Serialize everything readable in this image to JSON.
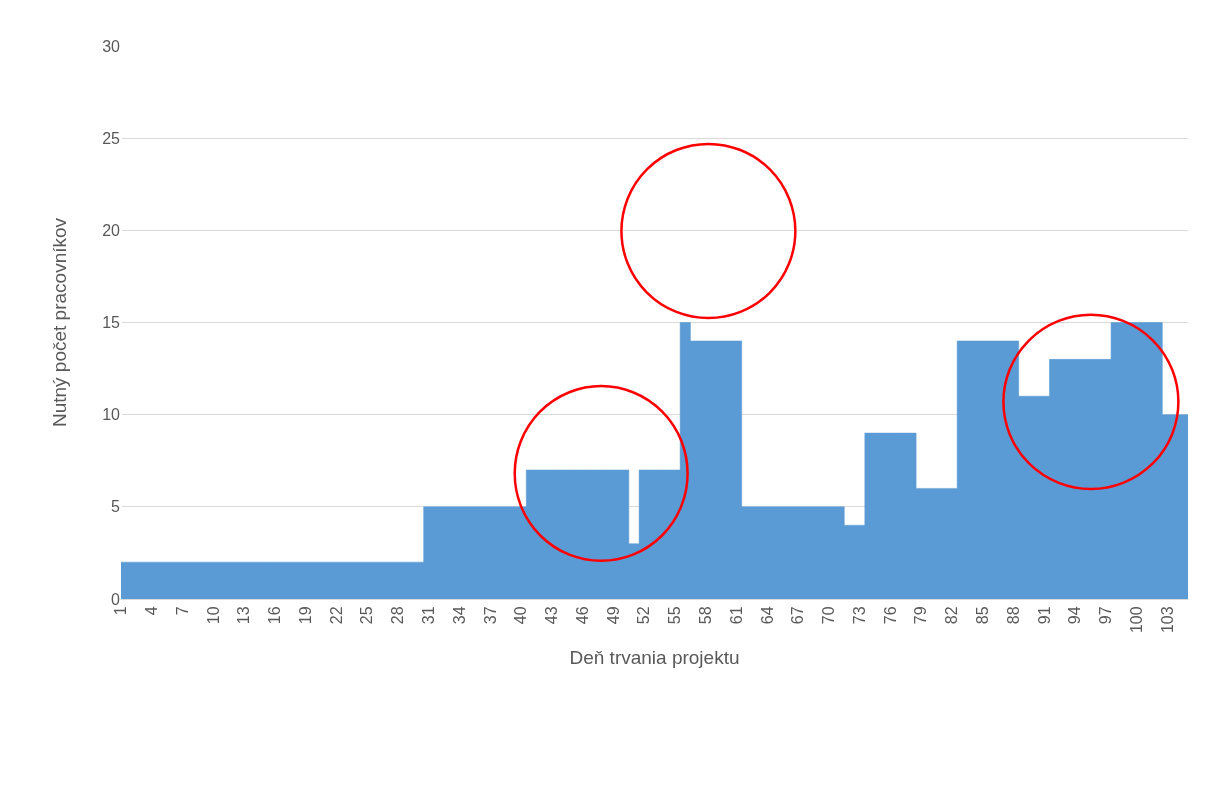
{
  "chart_data": {
    "type": "area",
    "xlabel": "Deň trvania projektu",
    "ylabel": "Nutný počet pracovníkov",
    "categories": [
      "1",
      null,
      null,
      "4",
      null,
      null,
      "7",
      null,
      null,
      "10",
      null,
      null,
      "13",
      null,
      null,
      "16",
      null,
      null,
      "19",
      null,
      null,
      "22",
      null,
      null,
      "25",
      null,
      null,
      "28",
      null,
      null,
      "31",
      null,
      null,
      "34",
      null,
      null,
      "37",
      null,
      null,
      "40",
      null,
      null,
      "43",
      null,
      null,
      "46",
      null,
      null,
      "49",
      null,
      null,
      "52",
      null,
      null,
      "55",
      null,
      null,
      "58",
      null,
      null,
      "61",
      null,
      null,
      "64",
      null,
      null,
      "67",
      null,
      null,
      "70",
      null,
      null,
      "73",
      null,
      null,
      "76",
      null,
      null,
      "79",
      null,
      null,
      "82",
      null,
      null,
      "85",
      null,
      null,
      "88",
      null,
      null,
      "91",
      null,
      null,
      "94",
      null,
      null,
      "97",
      null,
      null,
      "100",
      null,
      null,
      "103",
      null,
      null
    ],
    "values": [
      2,
      2,
      2,
      2,
      2,
      2,
      2,
      2,
      2,
      2,
      2,
      2,
      2,
      2,
      2,
      2,
      2,
      2,
      2,
      2,
      2,
      2,
      2,
      2,
      2,
      2,
      2,
      2,
      2,
      2,
      5,
      5,
      5,
      5,
      5,
      5,
      5,
      5,
      5,
      5,
      7,
      7,
      7,
      7,
      7,
      7,
      7,
      7,
      7,
      7,
      3,
      7,
      7,
      7,
      7,
      15,
      14,
      14,
      14,
      14,
      14,
      5,
      5,
      5,
      5,
      5,
      5,
      5,
      5,
      5,
      5,
      4,
      4,
      9,
      9,
      9,
      9,
      9,
      6,
      6,
      6,
      6,
      14,
      14,
      14,
      14,
      14,
      14,
      11,
      11,
      11,
      13,
      13,
      13,
      13,
      13,
      13,
      15,
      15,
      15,
      15,
      15,
      10,
      10,
      10
    ],
    "color": "#5b9bd5",
    "ylim": [
      0,
      30
    ],
    "yticks": [
      0,
      5,
      10,
      15,
      20,
      25,
      30
    ],
    "grid": "y",
    "legend": false
  }
}
